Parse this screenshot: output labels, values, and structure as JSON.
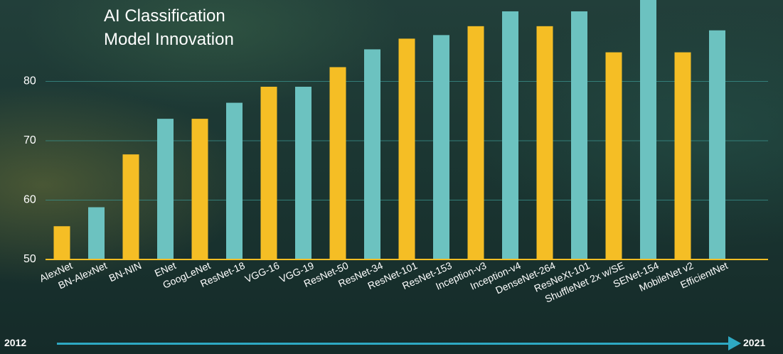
{
  "chart_data": {
    "type": "bar",
    "title": "AI Classification\nModel Innovation",
    "categories": [
      "AlexNet",
      "BN-AlexNet",
      "BN-NIN",
      "ENet",
      "GoogLeNet",
      "ResNet-18",
      "VGG-16",
      "VGG-19",
      "ResNet-50",
      "ResNet-34",
      "ResNet-101",
      "ResNet-153",
      "Inception-v3",
      "Inception-v4",
      "DenseNet-264",
      "ResNeXt-101",
      "ShuffleNet 2x w/SE",
      "SENet-154",
      "MobileNet v2",
      "EfficientNet"
    ],
    "values": [
      55.6,
      58.8,
      67.7,
      73.7,
      73.7,
      76.4,
      79.1,
      79.1,
      82.4,
      85.4,
      87.2,
      87.8,
      89.3,
      91.8,
      89.3,
      91.8,
      84.9,
      95.0,
      84.9,
      88.6
    ],
    "bar_colors": [
      "#f5be25",
      "#6cc2c0",
      "#f5be25",
      "#6cc2c0",
      "#f5be25",
      "#6cc2c0",
      "#f5be25",
      "#6cc2c0",
      "#f5be25",
      "#6cc2c0",
      "#f5be25",
      "#6cc2c0",
      "#f5be25",
      "#6cc2c0",
      "#f5be25",
      "#6cc2c0",
      "#f5be25",
      "#6cc2c0",
      "#f5be25",
      "#6cc2c0"
    ],
    "yticks": [
      50,
      60,
      70,
      80
    ],
    "ylim": [
      50,
      95
    ],
    "grid": true,
    "xlabel": "",
    "ylabel": ""
  },
  "timeline": {
    "start": "2012",
    "end": "2021"
  },
  "colors": {
    "accent_yellow": "#f5be25",
    "accent_teal": "#6cc2c0",
    "timeline": "#2ea9c3"
  }
}
